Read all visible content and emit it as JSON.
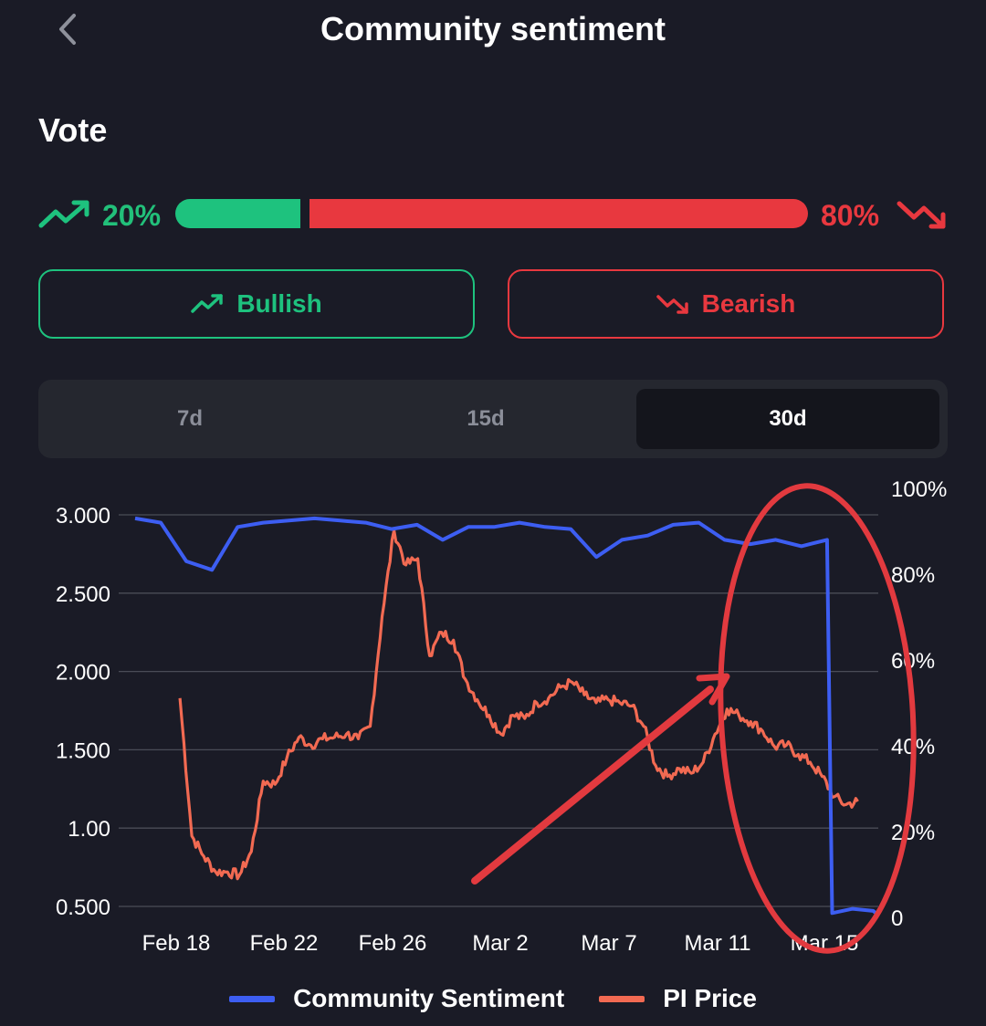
{
  "header": {
    "title": "Community sentiment",
    "back_icon": "chevron-left-icon"
  },
  "vote": {
    "section_title": "Vote",
    "bullish_pct_label": "20%",
    "bearish_pct_label": "80%",
    "bullish_fraction": 0.2,
    "bearish_fraction": 0.8,
    "bullish_label": "Bullish",
    "bearish_label": "Bearish",
    "bullish_icon": "trending-up-icon",
    "bearish_icon": "trending-down-icon",
    "colors": {
      "bullish": "#1ec27e",
      "bearish": "#e8383f"
    }
  },
  "tabs": {
    "items": [
      {
        "label": "7d",
        "active": false
      },
      {
        "label": "15d",
        "active": false
      },
      {
        "label": "30d",
        "active": true
      }
    ]
  },
  "chart_data": {
    "type": "line",
    "x_tick_labels": [
      "Feb 18",
      "Feb 22",
      "Feb 26",
      "Mar 2",
      "Mar 7",
      "Mar 11",
      "Mar 15"
    ],
    "left_axis": {
      "tick_labels": [
        "3.000",
        "2.500",
        "2.000",
        "1.500",
        "1.00",
        "0.500"
      ],
      "ticks": [
        3.0,
        2.5,
        2.0,
        1.5,
        1.0,
        0.5
      ],
      "range": [
        0.5,
        3.0
      ]
    },
    "right_axis": {
      "tick_labels": [
        "100%",
        "80%",
        "60%",
        "40%",
        "20%",
        "0"
      ],
      "ticks": [
        100,
        80,
        60,
        40,
        20,
        0
      ],
      "range": [
        0,
        100
      ]
    },
    "grid": true,
    "legend_position": "bottom",
    "series": [
      {
        "name": "Community Sentiment",
        "axis": "right",
        "color": "#3d5ef2",
        "x_days": [
          0,
          1,
          2,
          3,
          4,
          5,
          6,
          7,
          8,
          9,
          10,
          11,
          12,
          13,
          14,
          15,
          16,
          17,
          18,
          19,
          20,
          21,
          22,
          23,
          24,
          25,
          26,
          27,
          27.2,
          28,
          28.8,
          29
        ],
        "values": [
          93,
          92,
          83,
          81,
          91,
          92,
          92.5,
          93,
          92.5,
          92,
          90.5,
          91.5,
          88,
          91,
          91,
          92,
          91,
          90.5,
          84,
          88,
          89,
          91.5,
          92,
          88,
          87,
          88,
          86.5,
          88,
          1,
          2,
          1.5,
          0.5
        ]
      },
      {
        "name": "PI Price",
        "axis": "left",
        "color": "#f26a52",
        "start_day": 1.75,
        "end_day": 28.2,
        "values": [
          1.83,
          0.95,
          0.82,
          0.72,
          0.72,
          0.7,
          0.85,
          1.3,
          1.28,
          1.45,
          1.58,
          1.53,
          1.57,
          1.58,
          1.6,
          1.57,
          1.65,
          2.35,
          2.9,
          2.68,
          2.72,
          2.1,
          2.25,
          2.2,
          1.95,
          1.82,
          1.72,
          1.6,
          1.72,
          1.7,
          1.8,
          1.83,
          1.9,
          1.93,
          1.85,
          1.8,
          1.82,
          1.8,
          1.78,
          1.65,
          1.4,
          1.33,
          1.38,
          1.35,
          1.42,
          1.6,
          1.76,
          1.72,
          1.68,
          1.62,
          1.52,
          1.53,
          1.47,
          1.42,
          1.33,
          1.2,
          1.15,
          1.17
        ]
      }
    ]
  },
  "annotations": {
    "color": "#e23a3f",
    "items": [
      "red-ellipse-highlight",
      "red-arrow"
    ]
  }
}
